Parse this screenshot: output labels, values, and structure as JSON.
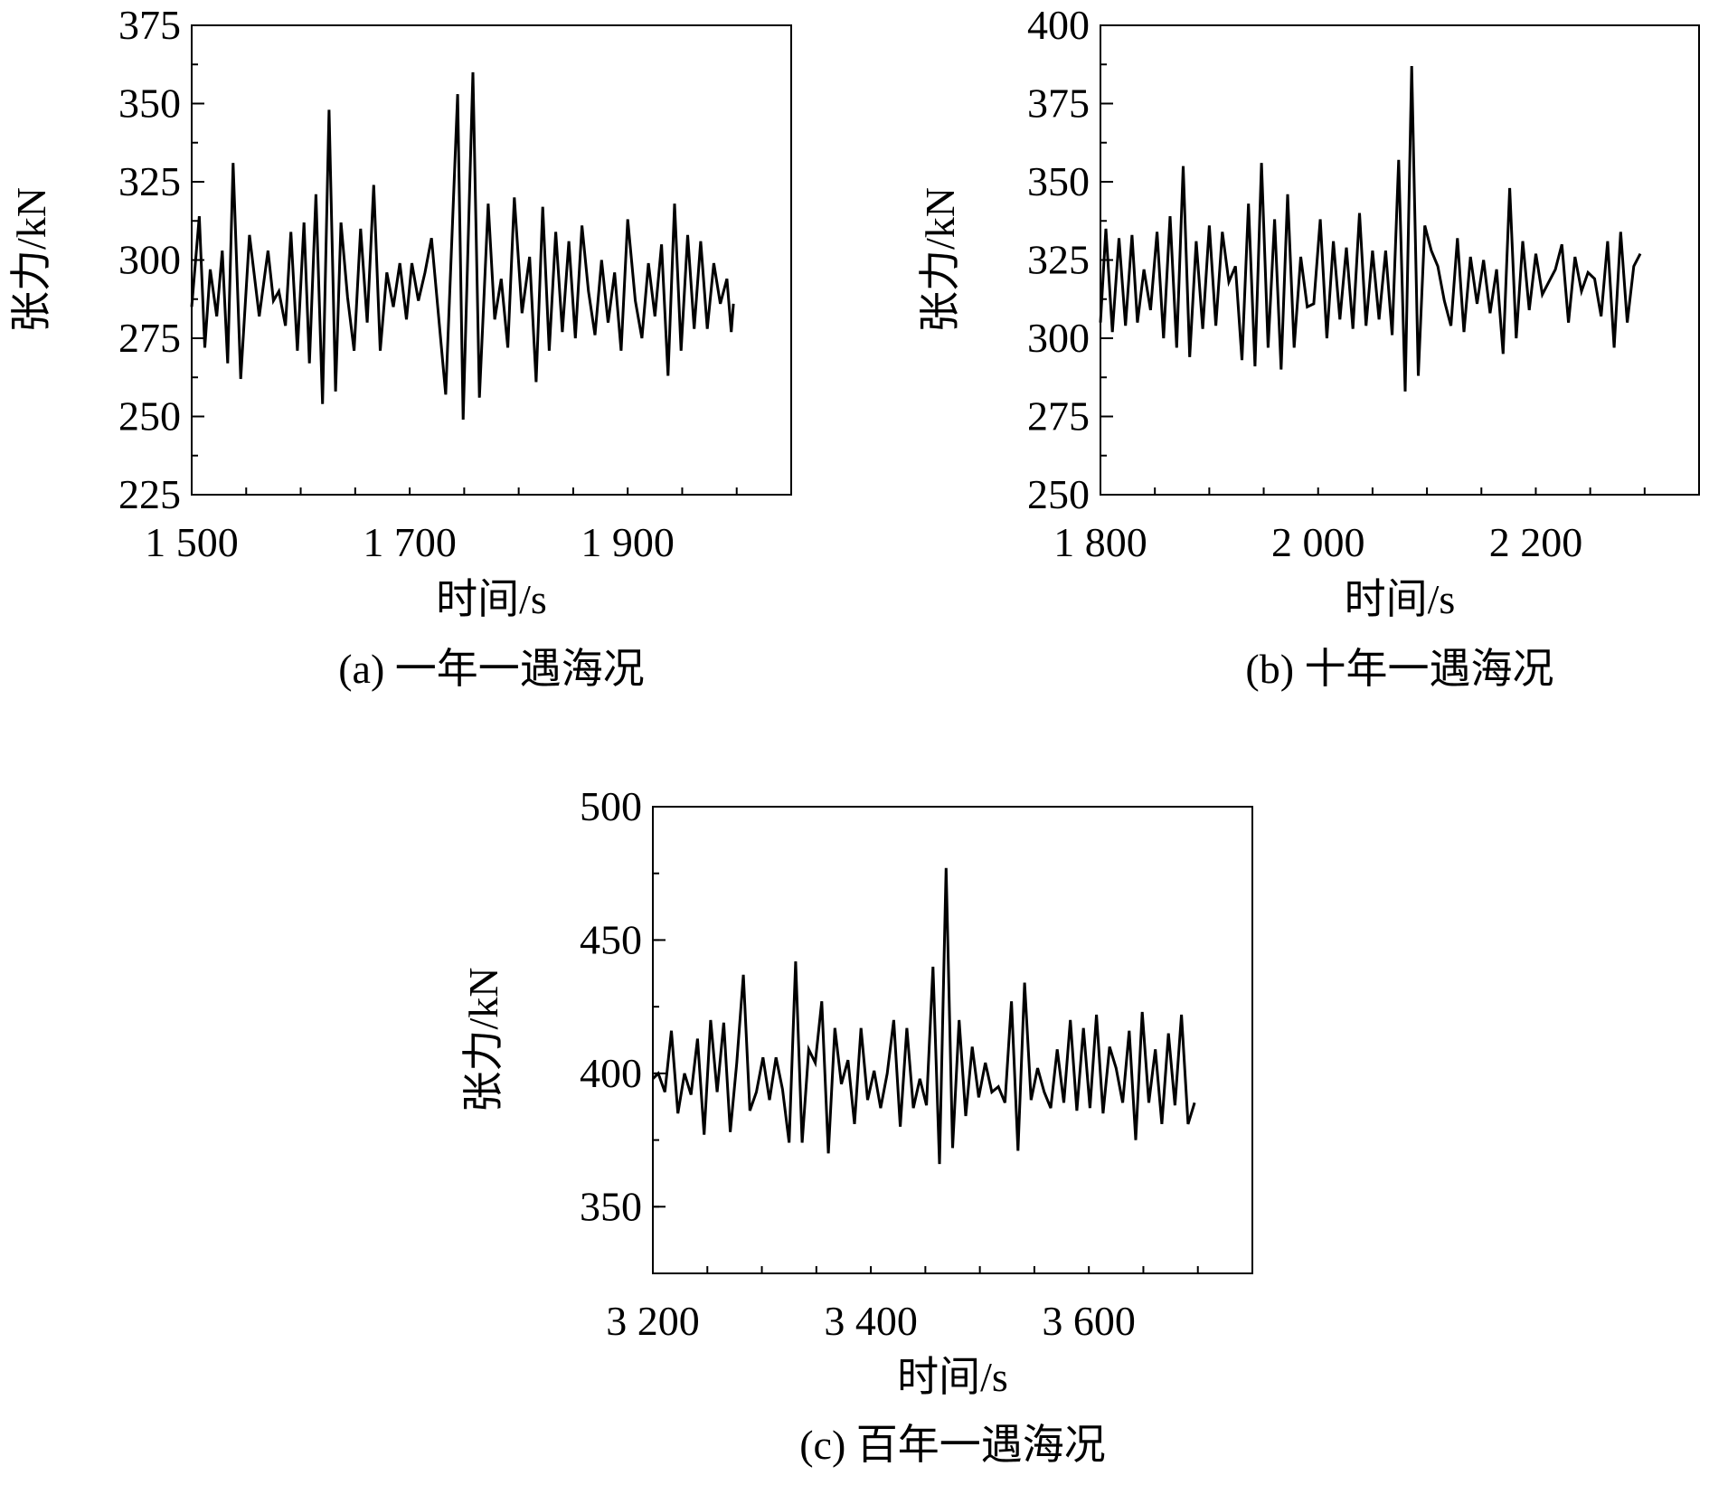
{
  "chart_data": [
    {
      "type": "line",
      "caption": "(a) 一年一遇海况",
      "xlabel": "时间/s",
      "ylabel": "张力/kN",
      "xlim": [
        1500,
        2050
      ],
      "ylim": [
        225,
        375
      ],
      "x_ticks": [
        1500,
        1700,
        1900
      ],
      "x_tick_labels": [
        "1 500",
        "1 700",
        "1 900"
      ],
      "y_ticks": [
        225,
        250,
        275,
        300,
        325,
        350,
        375
      ],
      "y_tick_labels": [
        "225",
        "250",
        "275",
        "300",
        "325",
        "350",
        "375"
      ],
      "x_minor_step": 50,
      "y_minor_step": 12.5,
      "grid": false,
      "series": [
        {
          "x": [
            1500,
            1507,
            1512,
            1517,
            1523,
            1528,
            1533,
            1538,
            1545,
            1553,
            1562,
            1570,
            1575,
            1580,
            1586,
            1591,
            1597,
            1603,
            1608,
            1614,
            1620,
            1626,
            1632,
            1637,
            1643,
            1649,
            1655,
            1661,
            1667,
            1673,
            1679,
            1685,
            1691,
            1697,
            1702,
            1708,
            1714,
            1720,
            1733,
            1744,
            1749,
            1758,
            1764,
            1772,
            1778,
            1784,
            1790,
            1796,
            1803,
            1810,
            1816,
            1822,
            1828,
            1834,
            1840,
            1846,
            1852,
            1858,
            1864,
            1870,
            1876,
            1882,
            1888,
            1894,
            1900,
            1907,
            1913,
            1919,
            1925,
            1931,
            1937,
            1943,
            1949,
            1955,
            1961,
            1967,
            1973,
            1979,
            1985,
            1991,
            1995,
            1997
          ],
          "y": [
            285,
            314,
            272,
            297,
            282,
            303,
            267,
            331,
            262,
            308,
            282,
            303,
            287,
            290,
            279,
            309,
            271,
            312,
            267,
            321,
            254,
            348,
            258,
            312,
            288,
            271,
            310,
            280,
            324,
            271,
            296,
            285,
            299,
            281,
            299,
            287,
            296,
            307,
            257,
            353,
            249,
            360,
            256,
            318,
            281,
            294,
            272,
            320,
            283,
            301,
            261,
            317,
            271,
            309,
            277,
            306,
            275,
            311,
            290,
            276,
            300,
            280,
            296,
            271,
            313,
            287,
            275,
            299,
            282,
            305,
            263,
            318,
            271,
            308,
            278,
            306,
            278,
            299,
            286,
            294,
            277,
            286
          ]
        }
      ]
    },
    {
      "type": "line",
      "caption": "(b) 十年一遇海况",
      "xlabel": "时间/s",
      "ylabel": "张力/kN",
      "xlim": [
        1800,
        2350
      ],
      "ylim": [
        250,
        400
      ],
      "x_ticks": [
        1800,
        2000,
        2200
      ],
      "x_tick_labels": [
        "1 800",
        "2 000",
        "2 200"
      ],
      "y_ticks": [
        250,
        275,
        300,
        325,
        350,
        375,
        400
      ],
      "y_tick_labels": [
        "250",
        "275",
        "300",
        "325",
        "350",
        "375",
        "400"
      ],
      "x_minor_step": 50,
      "y_minor_step": 12.5,
      "grid": false,
      "series": [
        {
          "x": [
            1800,
            1805,
            1811,
            1817,
            1823,
            1829,
            1834,
            1840,
            1846,
            1852,
            1858,
            1864,
            1870,
            1876,
            1882,
            1888,
            1894,
            1900,
            1906,
            1912,
            1918,
            1924,
            1930,
            1936,
            1942,
            1948,
            1954,
            1960,
            1966,
            1972,
            1978,
            1984,
            1990,
            1996,
            2002,
            2008,
            2014,
            2020,
            2026,
            2032,
            2038,
            2044,
            2050,
            2056,
            2062,
            2068,
            2074,
            2080,
            2086,
            2092,
            2098,
            2104,
            2110,
            2116,
            2122,
            2128,
            2134,
            2140,
            2146,
            2152,
            2158,
            2164,
            2170,
            2176,
            2182,
            2188,
            2194,
            2200,
            2206,
            2212,
            2218,
            2224,
            2230,
            2236,
            2242,
            2248,
            2254,
            2260,
            2266,
            2272,
            2278,
            2284,
            2290,
            2296
          ],
          "y": [
            305,
            335,
            302,
            332,
            304,
            333,
            305,
            322,
            309,
            334,
            300,
            339,
            297,
            355,
            294,
            331,
            303,
            336,
            304,
            334,
            318,
            323,
            293,
            343,
            291,
            356,
            297,
            338,
            290,
            346,
            297,
            326,
            310,
            311,
            338,
            300,
            331,
            306,
            329,
            303,
            340,
            304,
            328,
            306,
            328,
            301,
            357,
            283,
            387,
            288,
            336,
            328,
            323,
            312,
            304,
            332,
            302,
            326,
            311,
            325,
            308,
            322,
            295,
            348,
            300,
            331,
            309,
            327,
            314,
            318,
            322,
            330,
            305,
            326,
            315,
            321,
            319,
            307,
            331,
            297,
            334,
            305,
            323,
            327
          ]
        }
      ]
    },
    {
      "type": "line",
      "caption": "(c) 百年一遇海况",
      "xlabel": "时间/s",
      "ylabel": "张力/kN",
      "xlim": [
        3200,
        3750
      ],
      "ylim": [
        325,
        500
      ],
      "x_ticks": [
        3200,
        3400,
        3600
      ],
      "x_tick_labels": [
        "3 200",
        "3 400",
        "3 600"
      ],
      "y_ticks": [
        350,
        400,
        450,
        500
      ],
      "y_tick_labels": [
        "350",
        "400",
        "450",
        "500"
      ],
      "x_minor_step": 50,
      "y_minor_step": 25,
      "grid": false,
      "series": [
        {
          "x": [
            3200,
            3205,
            3211,
            3217,
            3223,
            3229,
            3235,
            3241,
            3247,
            3253,
            3259,
            3265,
            3271,
            3277,
            3283,
            3289,
            3295,
            3301,
            3307,
            3313,
            3319,
            3325,
            3331,
            3337,
            3343,
            3349,
            3355,
            3361,
            3367,
            3373,
            3379,
            3385,
            3391,
            3397,
            3403,
            3409,
            3415,
            3421,
            3427,
            3433,
            3439,
            3445,
            3451,
            3457,
            3463,
            3469,
            3475,
            3481,
            3487,
            3493,
            3499,
            3505,
            3511,
            3517,
            3523,
            3529,
            3535,
            3541,
            3547,
            3553,
            3559,
            3565,
            3571,
            3577,
            3583,
            3589,
            3595,
            3601,
            3607,
            3613,
            3619,
            3625,
            3631,
            3637,
            3643,
            3649,
            3655,
            3661,
            3667,
            3673,
            3679,
            3685,
            3691,
            3697
          ],
          "y": [
            398,
            400,
            393,
            416,
            385,
            400,
            392,
            413,
            377,
            420,
            393,
            419,
            378,
            404,
            437,
            386,
            393,
            406,
            390,
            406,
            394,
            374,
            442,
            374,
            409,
            404,
            427,
            370,
            417,
            396,
            405,
            381,
            417,
            390,
            401,
            387,
            400,
            420,
            380,
            417,
            387,
            398,
            388,
            440,
            366,
            477,
            372,
            420,
            384,
            410,
            391,
            404,
            393,
            395,
            389,
            427,
            371,
            434,
            390,
            402,
            393,
            387,
            409,
            389,
            420,
            386,
            417,
            387,
            422,
            385,
            410,
            402,
            389,
            416,
            375,
            423,
            389,
            409,
            381,
            415,
            388,
            422,
            381,
            389
          ]
        }
      ]
    }
  ]
}
